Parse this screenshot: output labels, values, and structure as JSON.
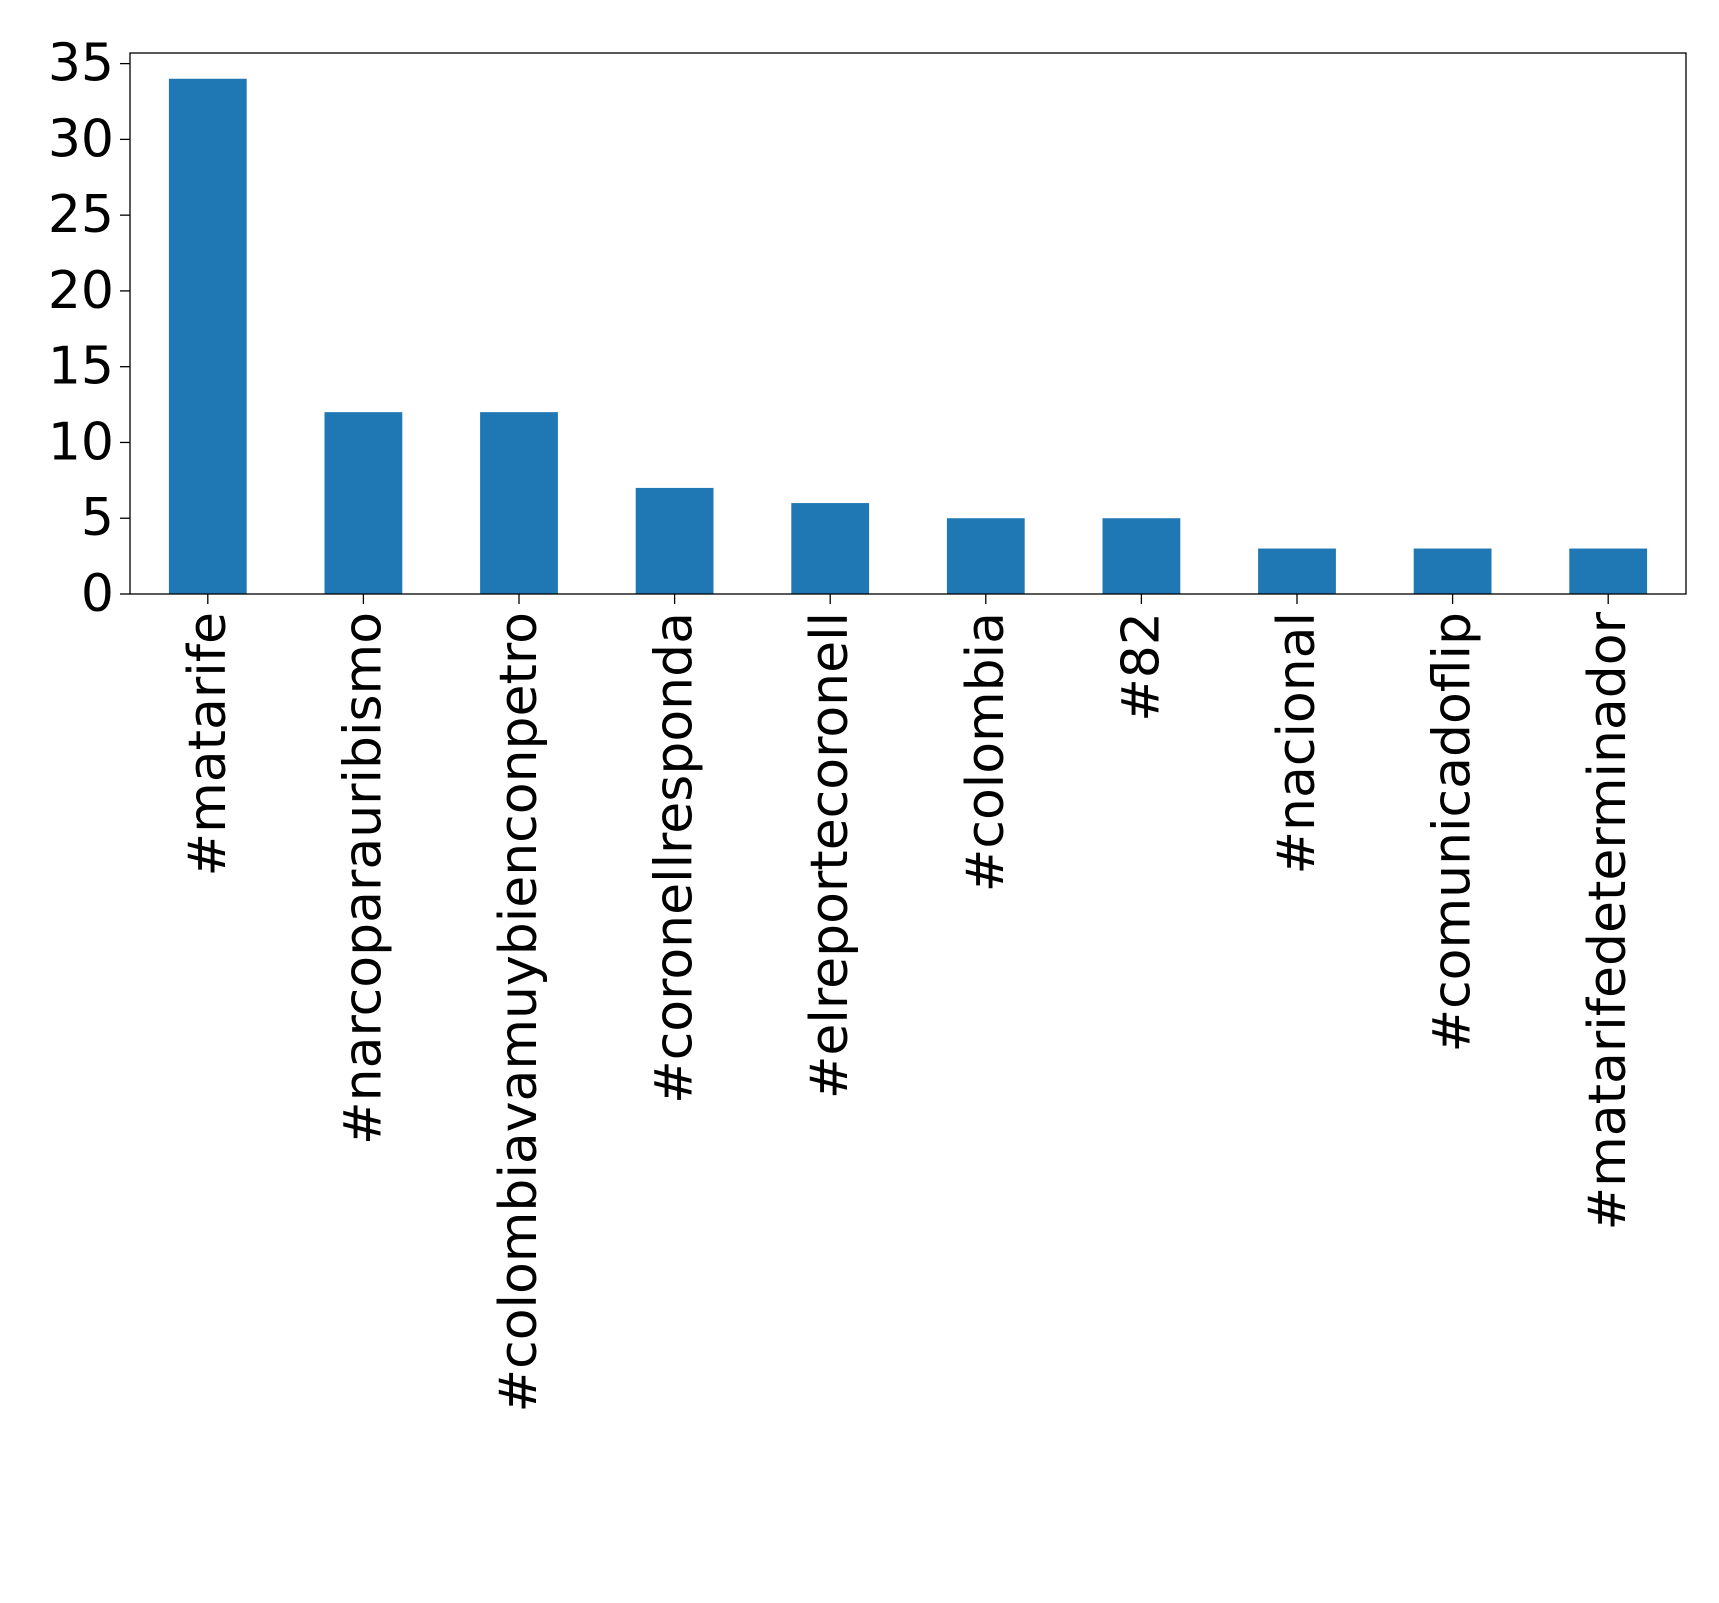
{
  "chart_data": {
    "type": "bar",
    "title": "",
    "xlabel": "",
    "ylabel": "",
    "categories": [
      "#matarife",
      "#narcoparauribismo",
      "#colombiavamuybienconpetro",
      "#coronellresponda",
      "#elreportecoronell",
      "#colombia",
      "#82",
      "#nacional",
      "#comunicadoflip",
      "#matarifedeterminador"
    ],
    "values": [
      34,
      12,
      12,
      7,
      6,
      5,
      5,
      3,
      3,
      3
    ],
    "ylim": [
      0,
      35.7
    ],
    "yticks": [
      0,
      5,
      10,
      15,
      20,
      25,
      30,
      35
    ],
    "ytick_labels": [
      "0",
      "5",
      "10",
      "15",
      "20",
      "25",
      "30",
      "35"
    ],
    "bar_color": "#1f77b4",
    "grid": false,
    "legend": "none"
  }
}
